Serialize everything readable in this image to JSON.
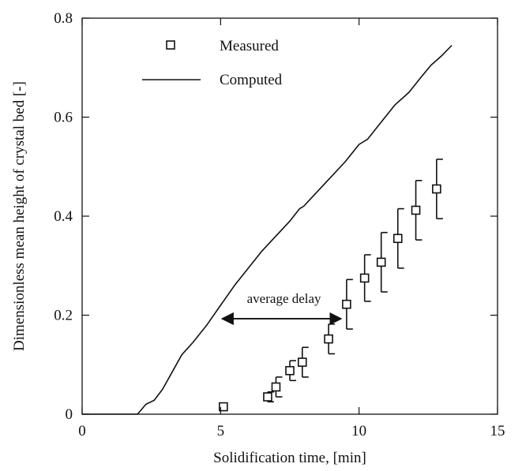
{
  "chart_data": {
    "type": "scatter",
    "xlabel": "Solidification time, [min]",
    "ylabel": "Dimensionless mean height of crystal bed [-]",
    "xlim": [
      0,
      15
    ],
    "ylim": [
      0,
      0.8
    ],
    "xticks": [
      0,
      5,
      10,
      15
    ],
    "yticks": [
      0,
      0.2,
      0.4,
      0.6,
      0.8
    ],
    "xtick_labels": [
      "0",
      "5",
      "10",
      "15"
    ],
    "ytick_labels": [
      "0",
      "0.2",
      "0.4",
      "0.6",
      "0.8"
    ],
    "grid": false,
    "legend_position": "top-left",
    "series": [
      {
        "name": "Measured",
        "kind": "scatter",
        "marker": "open-square",
        "points": [
          {
            "x": 5.1,
            "y": 0.015,
            "err": null
          },
          {
            "x": 6.7,
            "y": 0.035,
            "err": 0.01
          },
          {
            "x": 7.0,
            "y": 0.055,
            "err": 0.02
          },
          {
            "x": 7.5,
            "y": 0.088,
            "err": 0.02
          },
          {
            "x": 7.95,
            "y": 0.105,
            "err": 0.03
          },
          {
            "x": 8.9,
            "y": 0.152,
            "err": 0.03
          },
          {
            "x": 9.55,
            "y": 0.222,
            "err": 0.05
          },
          {
            "x": 10.2,
            "y": 0.275,
            "err": 0.047
          },
          {
            "x": 10.8,
            "y": 0.307,
            "err": 0.06
          },
          {
            "x": 11.4,
            "y": 0.355,
            "err": 0.06
          },
          {
            "x": 12.05,
            "y": 0.412,
            "err": 0.06
          },
          {
            "x": 12.8,
            "y": 0.455,
            "err": 0.06
          }
        ]
      },
      {
        "name": "Computed",
        "kind": "line",
        "x": [
          0,
          2.0,
          2.3,
          2.6,
          2.9,
          3.2,
          3.6,
          4.0,
          4.5,
          5.0,
          5.5,
          6.0,
          6.5,
          7.0,
          7.5,
          7.85,
          8.0,
          8.5,
          9.0,
          9.5,
          10.0,
          10.3,
          10.8,
          11.3,
          11.8,
          12.3,
          12.6,
          13.0,
          13.35
        ],
        "y": [
          0,
          0,
          0.02,
          0.028,
          0.05,
          0.08,
          0.12,
          0.145,
          0.18,
          0.22,
          0.26,
          0.295,
          0.33,
          0.36,
          0.39,
          0.415,
          0.42,
          0.45,
          0.48,
          0.51,
          0.545,
          0.555,
          0.59,
          0.625,
          0.65,
          0.685,
          0.705,
          0.725,
          0.745
        ]
      }
    ],
    "annotations": [
      {
        "text": "average delay",
        "arrow_from": [
          5.0,
          0.22
        ],
        "arrow_to": [
          9.35,
          0.22
        ]
      }
    ]
  }
}
